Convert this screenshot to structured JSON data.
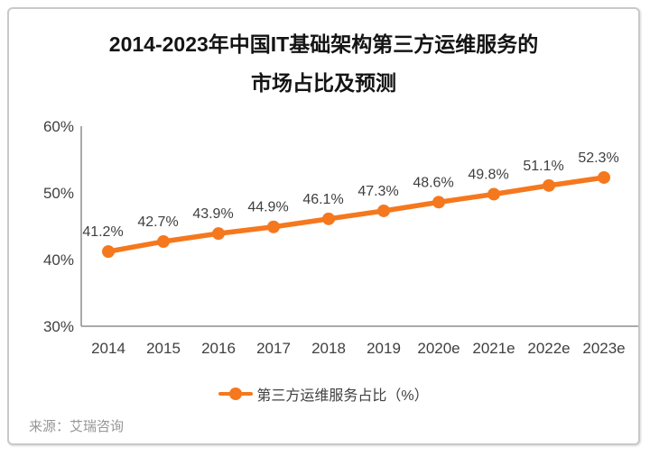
{
  "card": {
    "title_line1": "2014-2023年中国IT基础架构第三方运维服务的",
    "title_line2": "市场占比及预测",
    "source": "来源：艾瑞咨询"
  },
  "legend": {
    "label": "第三方运维服务占比（%）"
  },
  "colors": {
    "series": "#F5781E",
    "axis": "#8e8e8e",
    "tick_label": "#404040",
    "data_label": "#3f3f3f",
    "title": "#141414",
    "source": "#969696",
    "card_border": "#c9c9c9"
  },
  "chart_data": {
    "type": "line",
    "title": "2014-2023年中国IT基础架构第三方运维服务的市场占比及预测",
    "categories": [
      "2014",
      "2015",
      "2016",
      "2017",
      "2018",
      "2019",
      "2020e",
      "2021e",
      "2022e",
      "2023e"
    ],
    "series": [
      {
        "name": "第三方运维服务占比（%）",
        "values": [
          41.2,
          42.7,
          43.9,
          44.9,
          46.1,
          47.3,
          48.6,
          49.8,
          51.1,
          52.3
        ]
      }
    ],
    "data_labels": [
      "41.2%",
      "42.7%",
      "43.9%",
      "44.9%",
      "46.1%",
      "47.3%",
      "48.6%",
      "49.8%",
      "51.1%",
      "52.3%"
    ],
    "xlabel": "",
    "ylabel": "",
    "ylim": [
      30,
      60
    ],
    "yticks": [
      30,
      40,
      50,
      60
    ],
    "ytick_labels": [
      "30%",
      "40%",
      "50%",
      "60%"
    ],
    "grid": false,
    "legend_position": "bottom",
    "source": "来源：艾瑞咨询"
  }
}
